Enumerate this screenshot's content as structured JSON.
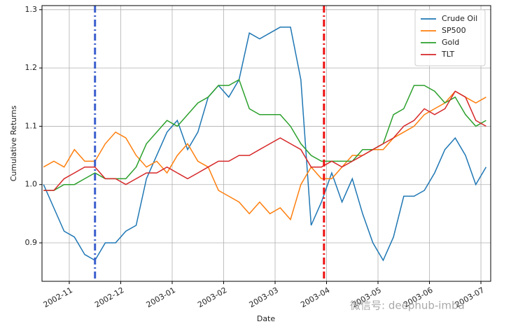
{
  "chart_data": {
    "type": "line",
    "xlabel": "Date",
    "ylabel": "Cumulative Returns",
    "x": [
      10.5,
      10.7,
      10.9,
      11.1,
      11.3,
      11.5,
      11.7,
      11.9,
      12.1,
      12.3,
      12.5,
      12.7,
      12.9,
      13.1,
      13.3,
      13.5,
      13.7,
      13.9,
      14.1,
      14.3,
      14.5,
      14.7,
      14.9,
      15.1,
      15.3,
      15.5,
      15.7,
      15.9,
      16.1,
      16.3,
      16.5,
      16.7,
      16.9,
      17.1,
      17.3,
      17.5,
      17.7,
      17.9,
      18.1,
      18.3,
      18.5,
      18.7,
      18.9,
      19.1
    ],
    "series": [
      {
        "name": "Crude Oil",
        "color": "#1f77b4",
        "values": [
          1.0,
          0.96,
          0.92,
          0.91,
          0.88,
          0.87,
          0.9,
          0.9,
          0.92,
          0.93,
          1.01,
          1.05,
          1.09,
          1.11,
          1.06,
          1.09,
          1.15,
          1.17,
          1.15,
          1.18,
          1.26,
          1.25,
          1.26,
          1.27,
          1.27,
          1.18,
          0.93,
          0.97,
          1.02,
          0.97,
          1.01,
          0.95,
          0.9,
          0.87,
          0.91,
          0.98,
          0.98,
          0.99,
          1.02,
          1.06,
          1.08,
          1.05,
          1.0,
          1.03
        ]
      },
      {
        "name": "SP500",
        "color": "#ff7f0e",
        "values": [
          1.03,
          1.04,
          1.03,
          1.06,
          1.04,
          1.04,
          1.07,
          1.09,
          1.08,
          1.05,
          1.03,
          1.04,
          1.02,
          1.05,
          1.07,
          1.04,
          1.03,
          0.99,
          0.98,
          0.97,
          0.95,
          0.97,
          0.95,
          0.96,
          0.94,
          1.0,
          1.03,
          1.01,
          1.01,
          1.03,
          1.05,
          1.05,
          1.06,
          1.06,
          1.08,
          1.09,
          1.1,
          1.12,
          1.13,
          1.14,
          1.16,
          1.15,
          1.14,
          1.15
        ]
      },
      {
        "name": "Gold",
        "color": "#2ca02c",
        "values": [
          0.99,
          0.99,
          1.0,
          1.0,
          1.01,
          1.02,
          1.01,
          1.01,
          1.01,
          1.03,
          1.07,
          1.09,
          1.11,
          1.1,
          1.12,
          1.14,
          1.15,
          1.17,
          1.17,
          1.18,
          1.13,
          1.12,
          1.12,
          1.12,
          1.1,
          1.07,
          1.05,
          1.04,
          1.04,
          1.04,
          1.04,
          1.06,
          1.06,
          1.07,
          1.12,
          1.13,
          1.17,
          1.17,
          1.16,
          1.14,
          1.15,
          1.12,
          1.1,
          1.11
        ]
      },
      {
        "name": "TLT",
        "color": "#d62728",
        "values": [
          0.99,
          0.99,
          1.01,
          1.02,
          1.03,
          1.03,
          1.01,
          1.01,
          1.0,
          1.01,
          1.02,
          1.02,
          1.03,
          1.02,
          1.01,
          1.02,
          1.03,
          1.04,
          1.04,
          1.05,
          1.05,
          1.06,
          1.07,
          1.08,
          1.07,
          1.06,
          1.03,
          1.03,
          1.04,
          1.03,
          1.04,
          1.05,
          1.06,
          1.07,
          1.08,
          1.1,
          1.11,
          1.13,
          1.12,
          1.13,
          1.16,
          1.15,
          1.11,
          1.1
        ]
      }
    ],
    "vlines": [
      {
        "x": 11.5,
        "color": "#3a5fcd"
      },
      {
        "x": 15.95,
        "color": "#ee1111"
      }
    ],
    "xlim": [
      10.47,
      19.19
    ],
    "xticks": [
      {
        "value": 11,
        "label": "2002-11"
      },
      {
        "value": 12,
        "label": "2002-12"
      },
      {
        "value": 13,
        "label": "2003-01"
      },
      {
        "value": 14,
        "label": "2003-02"
      },
      {
        "value": 15,
        "label": "2003-03"
      },
      {
        "value": 16,
        "label": "2003-04"
      },
      {
        "value": 17,
        "label": "2003-05"
      },
      {
        "value": 18,
        "label": "2003-06"
      },
      {
        "value": 19,
        "label": "2003-07"
      }
    ],
    "ylim": [
      0.834,
      1.307
    ],
    "yticks": [
      0.9,
      {
        "value": 1,
        "label": "1.0"
      },
      1.1,
      1.2,
      1.3
    ],
    "grid": true,
    "legend": "upper right",
    "watermark": "微信号: deephub-imba"
  }
}
